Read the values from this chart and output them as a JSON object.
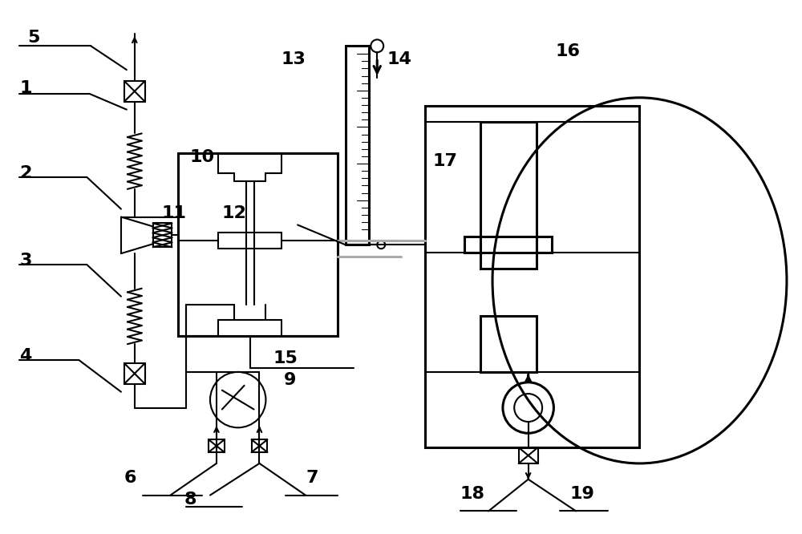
{
  "bg_color": "#ffffff",
  "lc": "#000000",
  "gc": "#aaaaaa",
  "lw": 1.5,
  "lw2": 2.2,
  "figsize": [
    10.0,
    6.66
  ],
  "dpi": 100
}
